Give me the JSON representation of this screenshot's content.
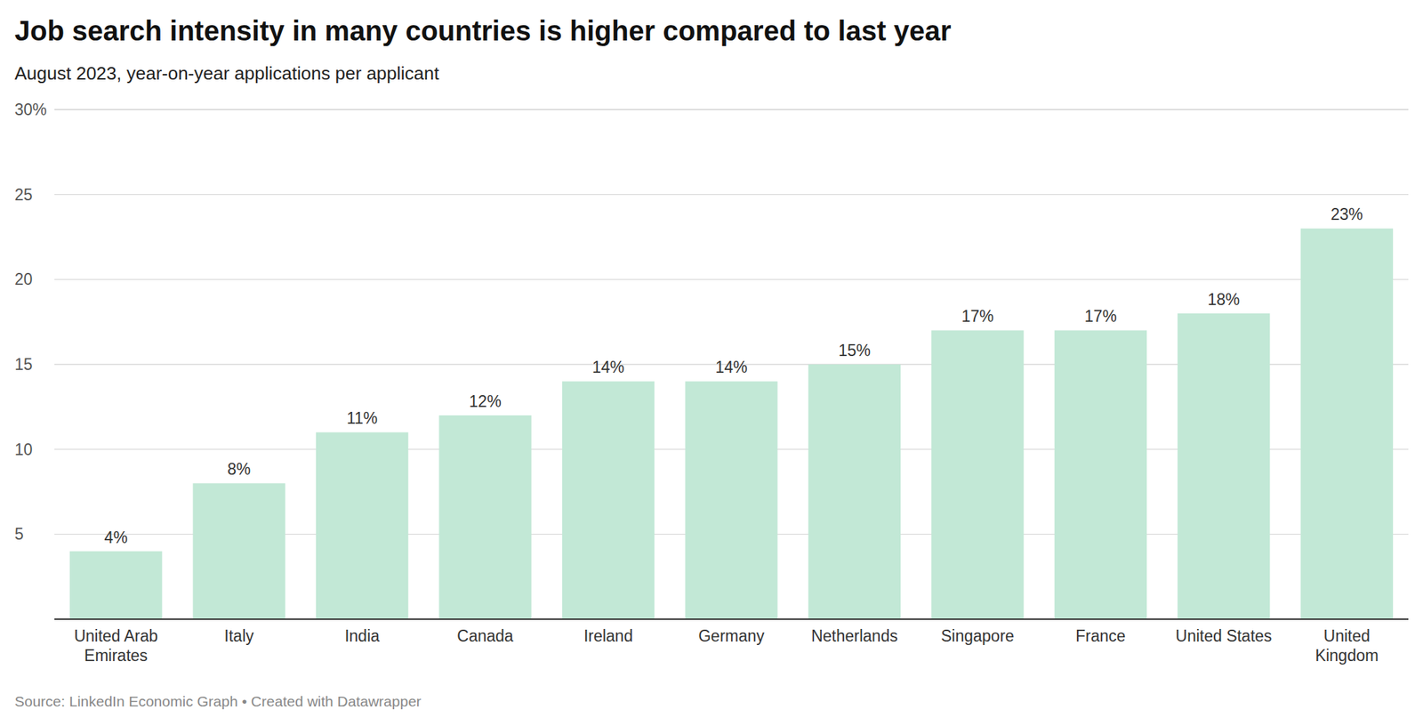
{
  "chart_data": {
    "type": "bar",
    "title": "Job search intensity in many countries is higher compared to last year",
    "subtitle": "August 2023, year-on-year applications per applicant",
    "source": "Source: LinkedIn Economic Graph • Created with Datawrapper",
    "categories": [
      "United Arab Emirates",
      "Italy",
      "India",
      "Canada",
      "Ireland",
      "Germany",
      "Netherlands",
      "Singapore",
      "France",
      "United States",
      "United Kingdom"
    ],
    "values": [
      4,
      8,
      11,
      12,
      14,
      14,
      15,
      17,
      17,
      18,
      23
    ],
    "value_labels": [
      "4%",
      "8%",
      "11%",
      "12%",
      "14%",
      "14%",
      "15%",
      "17%",
      "17%",
      "18%",
      "23%"
    ],
    "color": "#c2e8d6",
    "ylim": [
      0,
      30
    ],
    "yticks": [
      5,
      10,
      15,
      20,
      25,
      {
        "value": 30,
        "label": "30%"
      }
    ],
    "grid": true,
    "data_labels": true
  }
}
